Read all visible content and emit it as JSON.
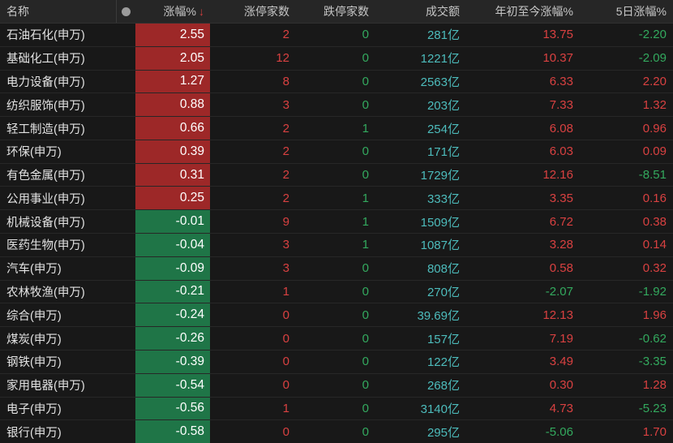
{
  "table": {
    "header": {
      "name": "名称",
      "change": "涨幅%",
      "sort_indicator": "↓",
      "limit_up": "涨停家数",
      "limit_down": "跌停家数",
      "turnover": "成交额",
      "ytd": "年初至今涨幅%",
      "d5": "5日涨幅%"
    },
    "rows": [
      {
        "name": "石油石化(申万)",
        "change": "2.55",
        "limit_up": "2",
        "limit_down": "0",
        "turnover": "281亿",
        "ytd": "13.75",
        "d5": "-2.20"
      },
      {
        "name": "基础化工(申万)",
        "change": "2.05",
        "limit_up": "12",
        "limit_down": "0",
        "turnover": "1221亿",
        "ytd": "10.37",
        "d5": "-2.09"
      },
      {
        "name": "电力设备(申万)",
        "change": "1.27",
        "limit_up": "8",
        "limit_down": "0",
        "turnover": "2563亿",
        "ytd": "6.33",
        "d5": "2.20"
      },
      {
        "name": "纺织服饰(申万)",
        "change": "0.88",
        "limit_up": "3",
        "limit_down": "0",
        "turnover": "203亿",
        "ytd": "7.33",
        "d5": "1.32"
      },
      {
        "name": "轻工制造(申万)",
        "change": "0.66",
        "limit_up": "2",
        "limit_down": "1",
        "turnover": "254亿",
        "ytd": "6.08",
        "d5": "0.96"
      },
      {
        "name": "环保(申万)",
        "change": "0.39",
        "limit_up": "2",
        "limit_down": "0",
        "turnover": "171亿",
        "ytd": "6.03",
        "d5": "0.09"
      },
      {
        "name": "有色金属(申万)",
        "change": "0.31",
        "limit_up": "2",
        "limit_down": "0",
        "turnover": "1729亿",
        "ytd": "12.16",
        "d5": "-8.51"
      },
      {
        "name": "公用事业(申万)",
        "change": "0.25",
        "limit_up": "2",
        "limit_down": "1",
        "turnover": "333亿",
        "ytd": "3.35",
        "d5": "0.16"
      },
      {
        "name": "机械设备(申万)",
        "change": "-0.01",
        "limit_up": "9",
        "limit_down": "1",
        "turnover": "1509亿",
        "ytd": "6.72",
        "d5": "0.38"
      },
      {
        "name": "医药生物(申万)",
        "change": "-0.04",
        "limit_up": "3",
        "limit_down": "1",
        "turnover": "1087亿",
        "ytd": "3.28",
        "d5": "0.14"
      },
      {
        "name": "汽车(申万)",
        "change": "-0.09",
        "limit_up": "3",
        "limit_down": "0",
        "turnover": "808亿",
        "ytd": "0.58",
        "d5": "0.32"
      },
      {
        "name": "农林牧渔(申万)",
        "change": "-0.21",
        "limit_up": "1",
        "limit_down": "0",
        "turnover": "270亿",
        "ytd": "-2.07",
        "d5": "-1.92"
      },
      {
        "name": "综合(申万)",
        "change": "-0.24",
        "limit_up": "0",
        "limit_down": "0",
        "turnover": "39.69亿",
        "ytd": "12.13",
        "d5": "1.96"
      },
      {
        "name": "煤炭(申万)",
        "change": "-0.26",
        "limit_up": "0",
        "limit_down": "0",
        "turnover": "157亿",
        "ytd": "7.19",
        "d5": "-0.62"
      },
      {
        "name": "钢铁(申万)",
        "change": "-0.39",
        "limit_up": "0",
        "limit_down": "0",
        "turnover": "122亿",
        "ytd": "3.49",
        "d5": "-3.35"
      },
      {
        "name": "家用电器(申万)",
        "change": "-0.54",
        "limit_up": "0",
        "limit_down": "0",
        "turnover": "268亿",
        "ytd": "0.30",
        "d5": "1.28"
      },
      {
        "name": "电子(申万)",
        "change": "-0.56",
        "limit_up": "1",
        "limit_down": "0",
        "turnover": "3140亿",
        "ytd": "4.73",
        "d5": "-5.23"
      },
      {
        "name": "银行(申万)",
        "change": "-0.58",
        "limit_up": "0",
        "limit_down": "0",
        "turnover": "295亿",
        "ytd": "-5.06",
        "d5": "1.70"
      }
    ]
  },
  "colors": {
    "up_cell_bg": "#9d2828",
    "down_cell_bg": "#1f7547",
    "up_text": "#d94141",
    "down_text": "#33a95e",
    "turnover_text": "#4dbcbc"
  }
}
